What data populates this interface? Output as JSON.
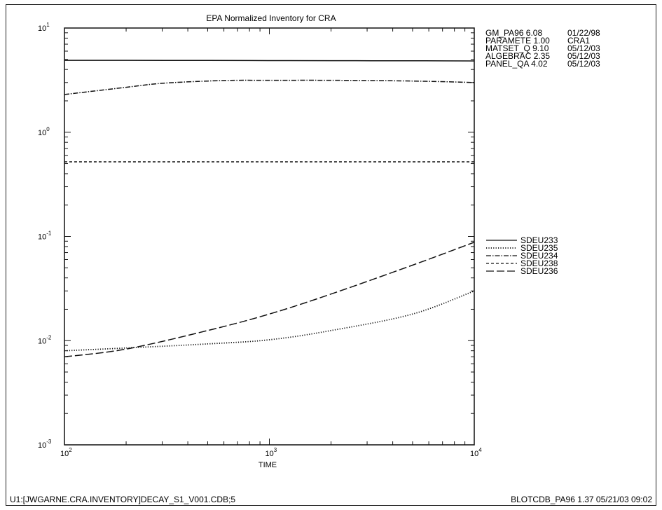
{
  "chart_data": {
    "type": "line",
    "title": "EPA Normalized Inventory for CRA",
    "xlabel": "TIME",
    "ylabel": "",
    "xscale": "log",
    "yscale": "log",
    "xlim": [
      100,
      10000
    ],
    "ylim": [
      0.001,
      10
    ],
    "x_ticks": [
      {
        "base": "10",
        "exp": "2",
        "value": 100
      },
      {
        "base": "10",
        "exp": "3",
        "value": 1000
      },
      {
        "base": "10",
        "exp": "4",
        "value": 10000
      }
    ],
    "y_ticks": [
      {
        "base": "10",
        "exp": "1",
        "value": 10
      },
      {
        "base": "10",
        "exp": "0",
        "value": 1
      },
      {
        "base": "10",
        "exp": "-1",
        "value": 0.1
      },
      {
        "base": "10",
        "exp": "-2",
        "value": 0.01
      },
      {
        "base": "10",
        "exp": "-3",
        "value": 0.001
      }
    ],
    "grid": false,
    "legend_position": "right",
    "series": [
      {
        "name": "SDEU233",
        "style": "solid",
        "x": [
          100,
          200,
          500,
          1000,
          2000,
          5000,
          10000
        ],
        "y": [
          4.9,
          4.9,
          4.88,
          4.87,
          4.86,
          4.85,
          4.83
        ]
      },
      {
        "name": "SDEU235",
        "style": "dotted",
        "x": [
          100,
          200,
          500,
          1000,
          2000,
          5000,
          10000
        ],
        "y": [
          0.008,
          0.0085,
          0.0093,
          0.0102,
          0.0125,
          0.018,
          0.03
        ]
      },
      {
        "name": "SDEU234",
        "style": "dashdot",
        "x": [
          100,
          200,
          300,
          500,
          700,
          1000,
          2000,
          5000,
          10000
        ],
        "y": [
          2.3,
          2.7,
          2.95,
          3.1,
          3.15,
          3.15,
          3.15,
          3.1,
          3.0
        ]
      },
      {
        "name": "SDEU238",
        "style": "shortdash",
        "x": [
          100,
          1000,
          10000
        ],
        "y": [
          0.52,
          0.52,
          0.52
        ]
      },
      {
        "name": "SDEU236",
        "style": "longdash",
        "x": [
          100,
          200,
          500,
          1000,
          2000,
          5000,
          10000
        ],
        "y": [
          0.007,
          0.0083,
          0.0125,
          0.018,
          0.028,
          0.053,
          0.088
        ]
      }
    ]
  },
  "info_lines": [
    [
      "GM_PA96 6.08",
      "01/22/98"
    ],
    [
      "PARAMETE 1.00",
      "CRA1"
    ],
    [
      "MATSET_Q 9.10",
      "05/12/03"
    ],
    [
      "ALGEBRAC 2.35",
      "05/12/03"
    ],
    [
      "PANEL_QA 4.02",
      "05/12/03"
    ]
  ],
  "footer": {
    "left": "U1:[JWGARNE.CRA.INVENTORY]DECAY_S1_V001.CDB;5",
    "right": "BLOTCDB_PA96 1.37 05/21/03 09:02"
  }
}
